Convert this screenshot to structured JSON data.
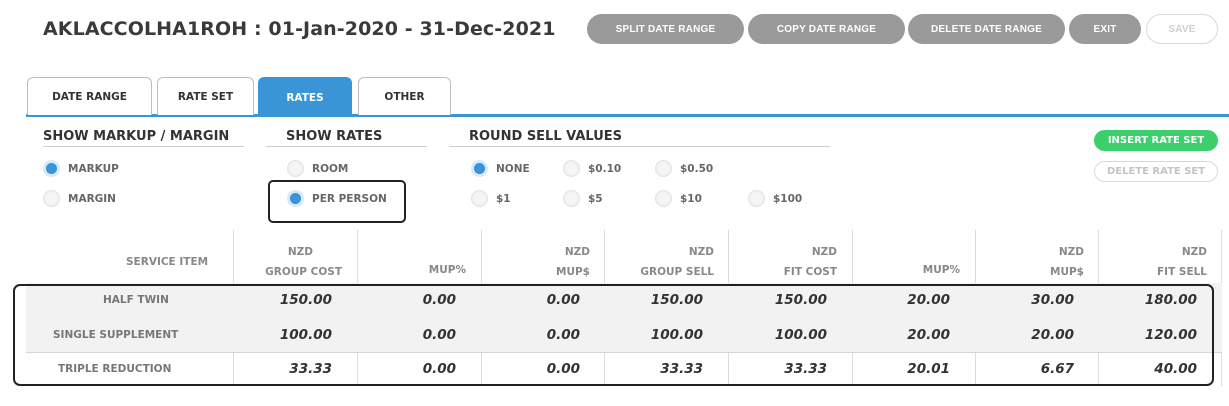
{
  "header": {
    "title": "AKLACCOLHA1ROH : 01-Jan-2020 - 31-Dec-2021",
    "buttons": {
      "split": "SPLIT DATE RANGE",
      "copy": "COPY DATE RANGE",
      "delete": "DELETE DATE RANGE",
      "exit": "EXIT",
      "save": "SAVE"
    }
  },
  "tabs": [
    {
      "label": "DATE RANGE",
      "active": false
    },
    {
      "label": "RATE SET",
      "active": false
    },
    {
      "label": "RATES",
      "active": true
    },
    {
      "label": "OTHER",
      "active": false
    }
  ],
  "options": {
    "markup_margin": {
      "title": "SHOW MARKUP / MARGIN",
      "selected": "MARKUP",
      "items": [
        "MARKUP",
        "MARGIN"
      ]
    },
    "show_rates": {
      "title": "SHOW RATES",
      "selected": "PER PERSON",
      "items": [
        "ROOM",
        "PER PERSON"
      ]
    },
    "round_sell": {
      "title": "ROUND SELL VALUES",
      "selected": "NONE",
      "items": [
        "NONE",
        "$0.10",
        "$0.50",
        "$1",
        "$5",
        "$10",
        "$100"
      ]
    }
  },
  "side_buttons": {
    "insert": "INSERT RATE SET",
    "delete": "DELETE RATE SET"
  },
  "table": {
    "columns": [
      {
        "top": "",
        "bottom": "SERVICE ITEM"
      },
      {
        "top": "NZD",
        "bottom": "GROUP COST"
      },
      {
        "top": "",
        "bottom": "MUP%"
      },
      {
        "top": "NZD",
        "bottom": "MUP$"
      },
      {
        "top": "NZD",
        "bottom": "GROUP SELL"
      },
      {
        "top": "NZD",
        "bottom": "FIT COST"
      },
      {
        "top": "",
        "bottom": "MUP%"
      },
      {
        "top": "NZD",
        "bottom": "MUP$"
      },
      {
        "top": "NZD",
        "bottom": "FIT SELL"
      }
    ],
    "rows": [
      {
        "label": "HALF TWIN",
        "values": [
          "150.00",
          "0.00",
          "0.00",
          "150.00",
          "150.00",
          "20.00",
          "30.00",
          "180.00"
        ]
      },
      {
        "label": "SINGLE SUPPLEMENT",
        "values": [
          "100.00",
          "0.00",
          "0.00",
          "100.00",
          "100.00",
          "20.00",
          "20.00",
          "120.00"
        ]
      },
      {
        "label": "TRIPLE REDUCTION",
        "values": [
          "33.33",
          "0.00",
          "0.00",
          "33.33",
          "33.33",
          "20.01",
          "6.67",
          "40.00"
        ]
      }
    ]
  },
  "colors": {
    "accent": "#3a95d6",
    "insert_button": "#3ccf6c",
    "header_button": "#9a9a9a"
  }
}
